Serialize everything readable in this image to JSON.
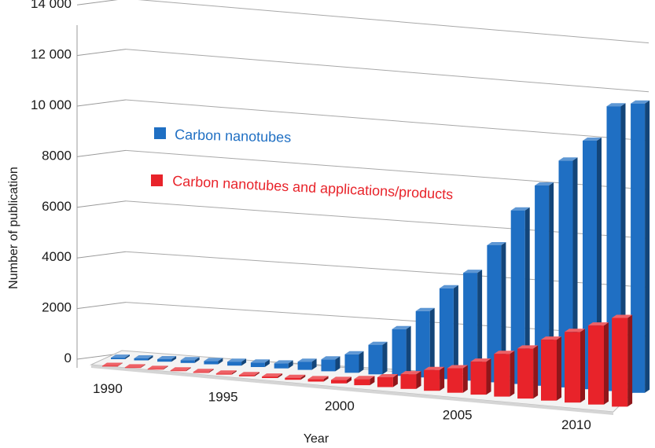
{
  "chart_data": {
    "type": "bar",
    "style": "3d-grouped-depth",
    "title": "",
    "xlabel": "Year",
    "ylabel": "Number of publication",
    "ylim": [
      0,
      14000
    ],
    "y_ticks": [
      "0",
      "2000",
      "4000",
      "6000",
      "8000",
      "10 000",
      "12 000",
      "14 000"
    ],
    "x_ticks": [
      "1990",
      "1995",
      "2000",
      "2005",
      "2010"
    ],
    "categories": [
      1990,
      1991,
      1992,
      1993,
      1994,
      1995,
      1996,
      1997,
      1998,
      1999,
      2000,
      2001,
      2002,
      2003,
      2004,
      2005,
      2006,
      2007,
      2008,
      2009,
      2010,
      2011,
      2012
    ],
    "grid": true,
    "legend_position": "upper-left",
    "series": [
      {
        "name": "Carbon nanotubes",
        "color": "#1f6fc3",
        "values": [
          60,
          80,
          100,
          110,
          130,
          160,
          180,
          200,
          330,
          480,
          750,
          1200,
          1900,
          2700,
          3700,
          4400,
          5600,
          7100,
          8200,
          9300,
          10200,
          11700,
          11900
        ]
      },
      {
        "name": "Carbon nanotubes and applications/products",
        "color": "#e8232a",
        "values": [
          15,
          20,
          25,
          30,
          35,
          40,
          50,
          60,
          80,
          100,
          140,
          250,
          400,
          600,
          850,
          1000,
          1350,
          1750,
          2050,
          2500,
          2900,
          3250,
          3650
        ]
      }
    ]
  }
}
